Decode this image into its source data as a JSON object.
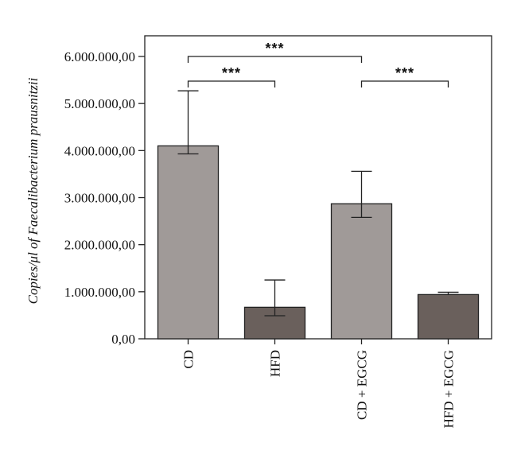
{
  "chart_data": {
    "type": "bar",
    "title": "",
    "xlabel": "",
    "ylabel": "Copies/μl of Faecalibacterium prausnitzii",
    "categories": [
      "CD",
      "HFD",
      "CD + EGCG",
      "HFD + EGCG"
    ],
    "values": [
      4100000,
      670000,
      2870000,
      940000
    ],
    "error_upper": [
      5270000,
      1250000,
      3560000,
      990000
    ],
    "error_lower": [
      3930000,
      490000,
      2580000,
      940000
    ],
    "bar_colors": [
      "#a09a98",
      "#6a605c",
      "#a09a98",
      "#6a605c"
    ],
    "ylim": [
      0,
      6000000
    ],
    "yticks": [
      0,
      1000000,
      2000000,
      3000000,
      4000000,
      5000000,
      6000000
    ],
    "ytick_labels": [
      "0,00",
      "1.000.000,00",
      "2.000.000,00",
      "3.000.000,00",
      "4.000.000,00",
      "5.000.000,00",
      "6.000.000,00"
    ],
    "significance": [
      {
        "from": 0,
        "to": 1,
        "label": "***"
      },
      {
        "from": 0,
        "to": 2,
        "label": "***"
      },
      {
        "from": 2,
        "to": 3,
        "label": "***"
      }
    ],
    "grid": false,
    "legend": "none"
  }
}
